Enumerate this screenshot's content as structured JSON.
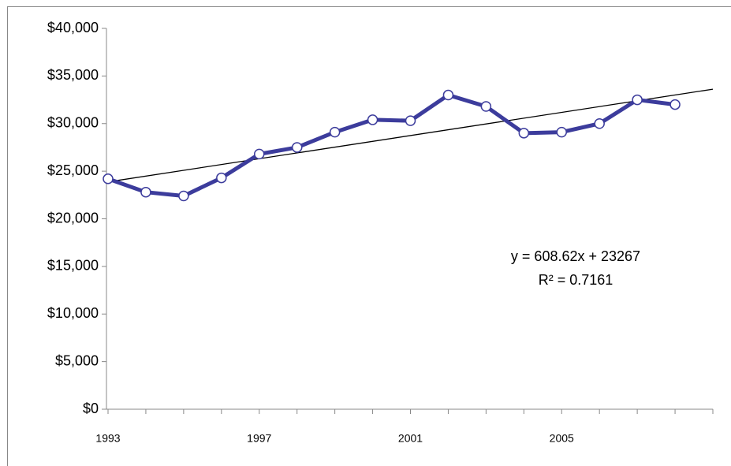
{
  "chart_data": {
    "type": "line",
    "x": [
      1993,
      1994,
      1995,
      1996,
      1997,
      1998,
      1999,
      2000,
      2001,
      2002,
      2003,
      2004,
      2005,
      2006,
      2007,
      2008
    ],
    "series": [
      {
        "color": "#3c3c9c",
        "values": [
          24200,
          22800,
          22400,
          24300,
          26800,
          27500,
          29100,
          30400,
          30300,
          33000,
          31800,
          29000,
          29100,
          30000,
          32500,
          32000
        ]
      }
    ],
    "trendline": {
      "x": [
        1993,
        2009
      ],
      "values": [
        23876,
        33613
      ],
      "color": "#000000"
    },
    "annotations": [
      "y = 608.62x + 23267",
      "R² = 0.7161"
    ],
    "xlim": [
      1993,
      2009
    ],
    "xticks": [
      1993,
      1997,
      2001,
      2005
    ],
    "x_minor_ticks": [
      1993,
      1994,
      1995,
      1996,
      1997,
      1998,
      1999,
      2000,
      2001,
      2002,
      2003,
      2004,
      2005,
      2006,
      2007,
      2008,
      2009
    ],
    "ylim": [
      0,
      40000
    ],
    "yticks": [
      {
        "value": 0,
        "label": "$0"
      },
      {
        "value": 5000,
        "label": "$5,000"
      },
      {
        "value": 10000,
        "label": "$10,000"
      },
      {
        "value": 15000,
        "label": "$15,000"
      },
      {
        "value": 20000,
        "label": "$20,000"
      },
      {
        "value": 25000,
        "label": "$25,000"
      },
      {
        "value": 30000,
        "label": "$30,000"
      },
      {
        "value": 35000,
        "label": "$35,000"
      },
      {
        "value": 40000,
        "label": "$40,000"
      }
    ]
  }
}
